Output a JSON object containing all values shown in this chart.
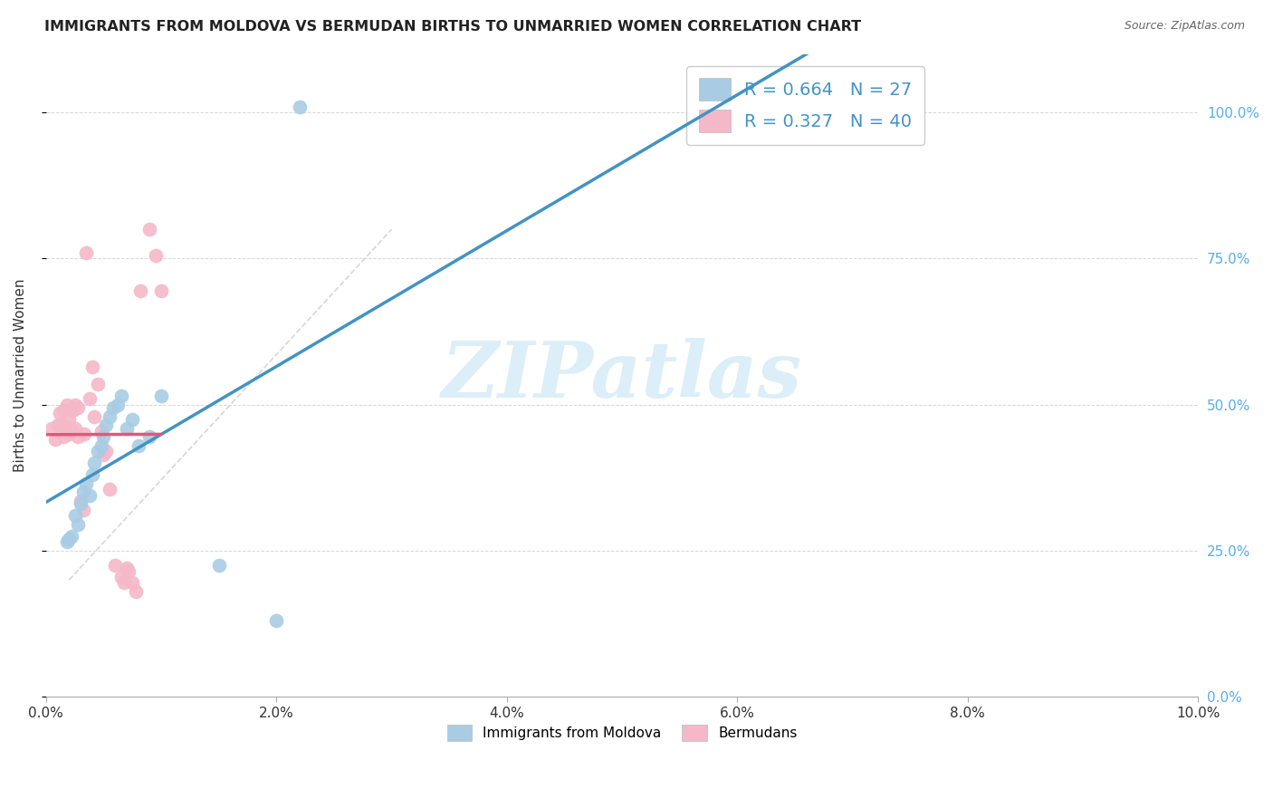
{
  "title": "IMMIGRANTS FROM MOLDOVA VS BERMUDAN BIRTHS TO UNMARRIED WOMEN CORRELATION CHART",
  "source": "Source: ZipAtlas.com",
  "ylabel_label": "Births to Unmarried Women",
  "legend_blue_label": "Immigrants from Moldova",
  "legend_pink_label": "Bermudans",
  "blue_R": "R = 0.664",
  "blue_N": "N = 27",
  "pink_R": "R = 0.327",
  "pink_N": "N = 40",
  "blue_color": "#a8cce4",
  "pink_color": "#f4b8c8",
  "blue_line_color": "#4393c3",
  "pink_line_color": "#e8547a",
  "watermark_color": "#dceef8",
  "grid_color": "#cccccc",
  "right_axis_color": "#5aadec",
  "watermark": "ZIPatlas",
  "blue_scatter_x": [
    0.0018,
    0.002,
    0.0022,
    0.0025,
    0.0028,
    0.003,
    0.0032,
    0.0035,
    0.0038,
    0.004,
    0.0042,
    0.0045,
    0.0048,
    0.005,
    0.0052,
    0.0055,
    0.0058,
    0.0062,
    0.0065,
    0.007,
    0.0075,
    0.008,
    0.009,
    0.01,
    0.015,
    0.02,
    0.022
  ],
  "blue_scatter_y": [
    0.265,
    0.27,
    0.275,
    0.31,
    0.295,
    0.33,
    0.35,
    0.365,
    0.345,
    0.38,
    0.4,
    0.42,
    0.43,
    0.445,
    0.465,
    0.48,
    0.495,
    0.5,
    0.515,
    0.46,
    0.475,
    0.43,
    0.445,
    0.515,
    0.225,
    0.13,
    1.01
  ],
  "pink_scatter_x": [
    0.0005,
    0.0008,
    0.001,
    0.0012,
    0.0013,
    0.0015,
    0.0015,
    0.0018,
    0.0018,
    0.002,
    0.002,
    0.0022,
    0.0023,
    0.0025,
    0.0025,
    0.0028,
    0.0028,
    0.003,
    0.0032,
    0.0033,
    0.0035,
    0.0038,
    0.004,
    0.0042,
    0.0045,
    0.0048,
    0.005,
    0.0052,
    0.0055,
    0.006,
    0.0065,
    0.0068,
    0.007,
    0.0072,
    0.0075,
    0.0078,
    0.0082,
    0.009,
    0.0095,
    0.01
  ],
  "pink_scatter_y": [
    0.46,
    0.44,
    0.465,
    0.485,
    0.465,
    0.445,
    0.49,
    0.46,
    0.5,
    0.45,
    0.475,
    0.455,
    0.49,
    0.46,
    0.5,
    0.445,
    0.495,
    0.335,
    0.32,
    0.45,
    0.76,
    0.51,
    0.565,
    0.48,
    0.535,
    0.455,
    0.415,
    0.42,
    0.355,
    0.225,
    0.205,
    0.195,
    0.22,
    0.215,
    0.195,
    0.18,
    0.695,
    0.8,
    0.755,
    0.695
  ],
  "xlim": [
    0.0,
    0.1
  ],
  "ylim": [
    0.0,
    1.1
  ],
  "xtick_vals": [
    0.0,
    0.02,
    0.04,
    0.06,
    0.08,
    0.1
  ],
  "xtick_labels": [
    "0.0%",
    "2.0%",
    "4.0%",
    "6.0%",
    "8.0%",
    "10.0%"
  ],
  "ytick_vals": [
    0.0,
    0.25,
    0.5,
    0.75,
    1.0
  ],
  "ytick_labels": [
    "0.0%",
    "25.0%",
    "50.0%",
    "75.0%",
    "100.0%"
  ],
  "figsize": [
    14.06,
    8.92
  ],
  "dpi": 100
}
